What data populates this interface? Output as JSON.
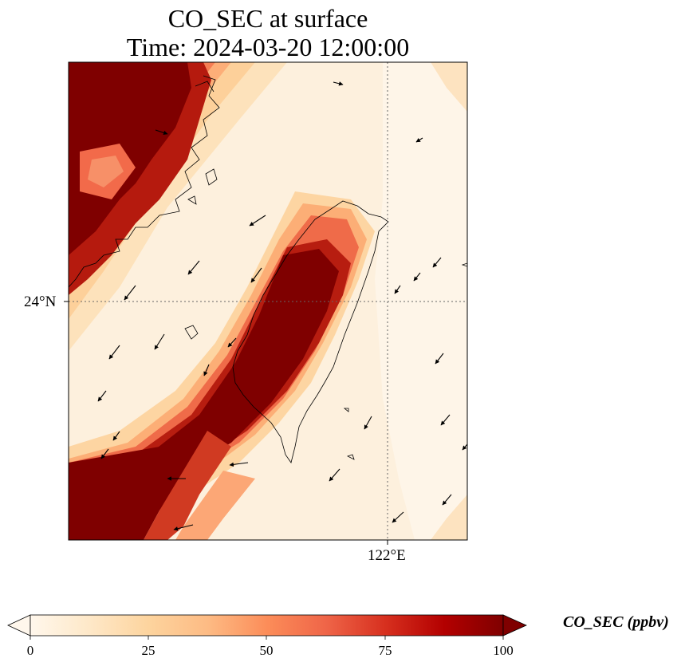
{
  "title": {
    "line1": "CO_SEC at surface",
    "line2": "Time: 2024-03-20 12:00:00"
  },
  "axes": {
    "lat_tick": "24°N",
    "lon_tick": "122°E"
  },
  "colorbar": {
    "label": "CO_SEC (ppbv)",
    "ticks": [
      "0",
      "25",
      "50",
      "75",
      "100"
    ],
    "min": 0,
    "max": 100,
    "colormap": [
      "#fff7ec",
      "#fee8c8",
      "#fdd49e",
      "#fdbb84",
      "#fc8d59",
      "#ef6548",
      "#d7301f",
      "#b30000",
      "#7f0000"
    ],
    "extend": "both"
  },
  "map": {
    "grid": "dotted",
    "features": [
      "coastline",
      "wind-vectors",
      "co-concentration-field"
    ]
  }
}
